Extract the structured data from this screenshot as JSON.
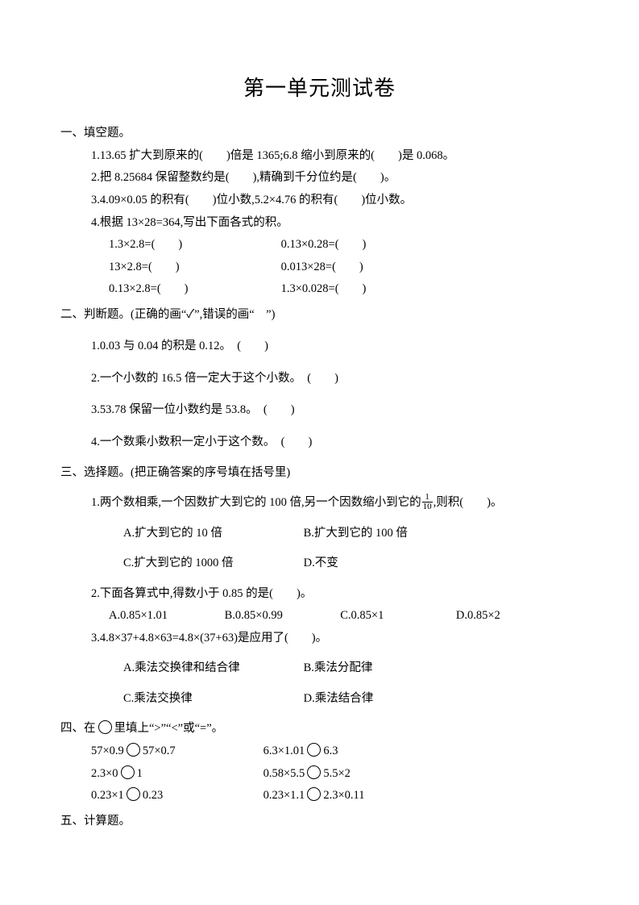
{
  "title": "第一单元测试卷",
  "s1": {
    "header": "一、填空题。",
    "q1": "1.13.65 扩大到原来的(　　)倍是 1365;6.8 缩小到原来的(　　)是 0.068。",
    "q2": "2.把 8.25684 保留整数约是(　　),精确到千分位约是(　　)。",
    "q3": "3.4.09×0.05 的积有(　　)位小数,5.2×4.76 的积有(　　)位小数。",
    "q4_head": "4.根据 13×28=364,写出下面各式的积。",
    "q4_r1a": "1.3×2.8=(　　)",
    "q4_r1b": "0.13×0.28=(　　)",
    "q4_r2a": "13×2.8=(　　)",
    "q4_r2b": "0.013×28=(　　)",
    "q4_r3a": "0.13×2.8=(　　)",
    "q4_r3b": "1.3×0.028=(　　)"
  },
  "s2": {
    "header": "二、判断题。(正确的画“✓”,错误的画“　”)",
    "q1": "1.0.03 与 0.04 的积是 0.12。　(　　)",
    "q2": "2.一个小数的 16.5 倍一定大于这个小数。　(　　)",
    "q3": "3.53.78 保留一位小数约是 53.8。　(　　)",
    "q4": "4.一个数乘小数积一定小于这个数。　(　　)"
  },
  "s3": {
    "header": "三、选择题。(把正确答案的序号填在括号里)",
    "q1_pre": "1.两个数相乘,一个因数扩大到它的 100 倍,另一个因数缩小到它的",
    "q1_frac_num": "1",
    "q1_frac_den": "10",
    "q1_post": ",则积(　　)。",
    "q1_a": "A.扩大到它的 10 倍",
    "q1_b": "B.扩大到它的 100 倍",
    "q1_c": "C.扩大到它的 1000 倍",
    "q1_d": "D.不变",
    "q2": "2.下面各算式中,得数小于 0.85 的是(　　)。",
    "q2_a": "A.0.85×1.01",
    "q2_b": "B.0.85×0.99",
    "q2_c": "C.0.85×1",
    "q2_d": "D.0.85×2",
    "q3": "3.4.8×37+4.8×63=4.8×(37+63)是应用了(　　)。",
    "q3_a": "A.乘法交换律和结合律",
    "q3_b": "B.乘法分配律",
    "q3_c": "C.乘法交换律",
    "q3_d": "D.乘法结合律"
  },
  "s4": {
    "header_pre": "四、在",
    "header_post": "里填上“>”“<”或“=”。",
    "r1a_l": "57×0.9",
    "r1a_r": "57×0.7",
    "r1b_l": "6.3×1.01",
    "r1b_r": "6.3",
    "r2a_l": "2.3×0",
    "r2a_r": "1",
    "r2b_l": "0.58×5.5",
    "r2b_r": "5.5×2",
    "r3a_l": "0.23×1",
    "r3a_r": "0.23",
    "r3b_l": "0.23×1.1",
    "r3b_r": "2.3×0.11"
  },
  "s5": {
    "header": "五、计算题。"
  }
}
